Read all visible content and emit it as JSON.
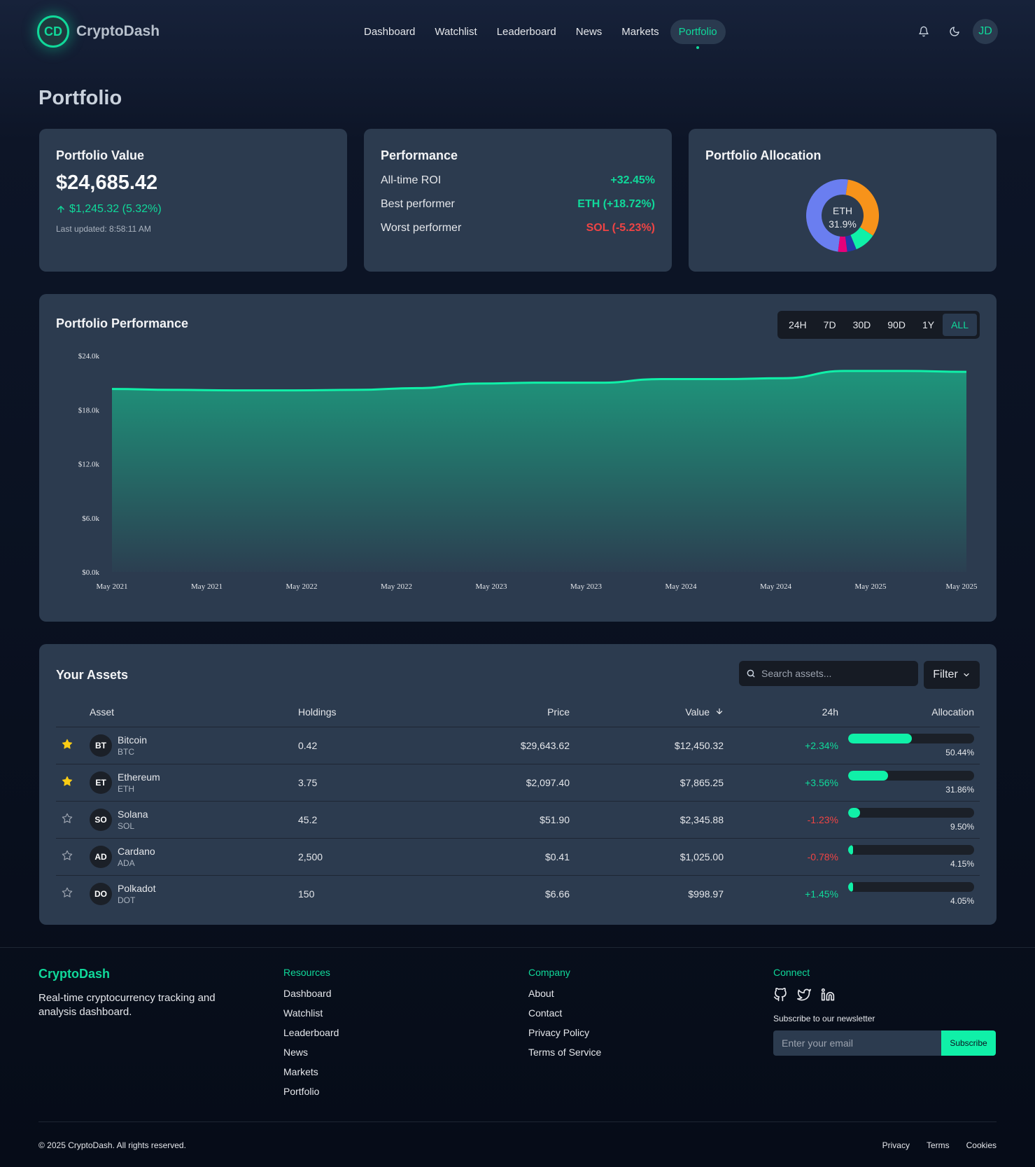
{
  "brand": {
    "initials": "CD",
    "name": "CryptoDash"
  },
  "nav": {
    "links": [
      "Dashboard",
      "Watchlist",
      "Leaderboard",
      "News",
      "Markets",
      "Portfolio"
    ],
    "active": "Portfolio",
    "avatar": "JD"
  },
  "page_title": "Portfolio",
  "portfolio_value": {
    "title": "Portfolio Value",
    "value": "$24,685.42",
    "change": "$1,245.32 (5.32%)",
    "updated": "Last updated: 8:58:11 AM"
  },
  "performance": {
    "title": "Performance",
    "rows": [
      {
        "label": "All-time ROI",
        "value": "+32.45%",
        "tone": "green"
      },
      {
        "label": "Best performer",
        "value": "ETH (+18.72%)",
        "tone": "green"
      },
      {
        "label": "Worst performer",
        "value": "SOL (-5.23%)",
        "tone": "red"
      }
    ]
  },
  "allocation": {
    "title": "Portfolio Allocation",
    "center_label": "ETH",
    "center_value": "31.9%"
  },
  "perf_chart": {
    "title": "Portfolio Performance",
    "ranges": [
      "24H",
      "7D",
      "30D",
      "90D",
      "1Y",
      "ALL"
    ],
    "active_range": "ALL"
  },
  "chart_data": [
    {
      "type": "area",
      "title": "Portfolio Performance",
      "y_ticks": [
        "$24.0k",
        "$18.0k",
        "$12.0k",
        "$6.0k",
        "$0.0k"
      ],
      "ylim": [
        0,
        24000
      ],
      "x_ticks": [
        "May 2021",
        "May 2021",
        "May 2022",
        "May 2022",
        "May 2023",
        "May 2023",
        "May 2024",
        "May 2024",
        "May 2025",
        "May 2025"
      ],
      "values": [
        20300,
        20200,
        20150,
        20150,
        20200,
        20400,
        20900,
        21000,
        21000,
        21400,
        21400,
        21500,
        22300,
        22300,
        22200
      ],
      "color": "#10f0a8"
    },
    {
      "type": "pie",
      "title": "Portfolio Allocation",
      "labels": [
        "BTC",
        "ETH",
        "SOL",
        "ADA",
        "DOT"
      ],
      "values": [
        50.44,
        31.86,
        9.5,
        4.15,
        4.05
      ],
      "colors": [
        "#6a7ef0",
        "#f7931a",
        "#10f0a8",
        "#2438a8",
        "#e6007a"
      ]
    }
  ],
  "assets": {
    "title": "Your Assets",
    "search_placeholder": "Search assets...",
    "filter_label": "Filter",
    "columns": [
      "Asset",
      "Holdings",
      "Price",
      "Value",
      "24h",
      "Allocation"
    ],
    "rows": [
      {
        "starred": true,
        "badge": "BT",
        "name": "Bitcoin",
        "symbol": "BTC",
        "holdings": "0.42",
        "price": "$29,643.62",
        "value": "$12,450.32",
        "change": "+2.34%",
        "tone": "green",
        "alloc_pct": 50.44,
        "alloc": "50.44%"
      },
      {
        "starred": true,
        "badge": "ET",
        "name": "Ethereum",
        "symbol": "ETH",
        "holdings": "3.75",
        "price": "$2,097.40",
        "value": "$7,865.25",
        "change": "+3.56%",
        "tone": "green",
        "alloc_pct": 31.86,
        "alloc": "31.86%"
      },
      {
        "starred": false,
        "badge": "SO",
        "name": "Solana",
        "symbol": "SOL",
        "holdings": "45.2",
        "price": "$51.90",
        "value": "$2,345.88",
        "change": "-1.23%",
        "tone": "red",
        "alloc_pct": 9.5,
        "alloc": "9.50%"
      },
      {
        "starred": false,
        "badge": "AD",
        "name": "Cardano",
        "symbol": "ADA",
        "holdings": "2,500",
        "price": "$0.41",
        "value": "$1,025.00",
        "change": "-0.78%",
        "tone": "red",
        "alloc_pct": 4.15,
        "alloc": "4.15%"
      },
      {
        "starred": false,
        "badge": "DO",
        "name": "Polkadot",
        "symbol": "DOT",
        "holdings": "150",
        "price": "$6.66",
        "value": "$998.97",
        "change": "+1.45%",
        "tone": "green",
        "alloc_pct": 4.05,
        "alloc": "4.05%"
      }
    ]
  },
  "footer": {
    "brand": "CryptoDash",
    "description": "Real-time cryptocurrency tracking and analysis dashboard.",
    "resources": {
      "title": "Resources",
      "links": [
        "Dashboard",
        "Watchlist",
        "Leaderboard",
        "News",
        "Markets",
        "Portfolio"
      ]
    },
    "company": {
      "title": "Company",
      "links": [
        "About",
        "Contact",
        "Privacy Policy",
        "Terms of Service"
      ]
    },
    "connect": {
      "title": "Connect",
      "social_icons": [
        "github-icon",
        "twitter-icon",
        "linkedin-icon"
      ],
      "newsletter_label": "Subscribe to our newsletter",
      "email_placeholder": "Enter your email",
      "subscribe_label": "Subscribe"
    },
    "copyright": "© 2025 CryptoDash. All rights reserved.",
    "legal_links": [
      "Privacy",
      "Terms",
      "Cookies"
    ]
  }
}
